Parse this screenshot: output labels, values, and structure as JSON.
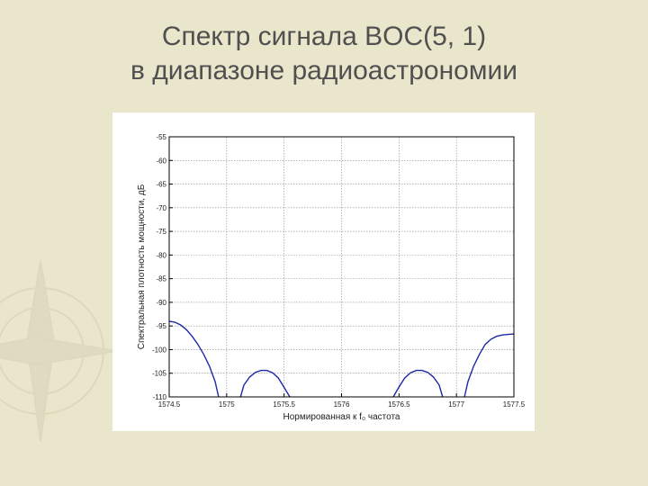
{
  "slide": {
    "title_line1": "Спектр сигнала BOC(5, 1)",
    "title_line2": "в диапазоне радиоастрономии"
  },
  "colors": {
    "background": "#e9e6cc",
    "series": "#1c2aa8",
    "grid": "#8a8a8a"
  },
  "chart_data": {
    "type": "line",
    "title": "",
    "xlabel": "Нормированная к f₀ частота",
    "ylabel": "Спектральная плотность мощности, дБ",
    "xlim": [
      1574.5,
      1577.5
    ],
    "ylim": [
      -110,
      -55
    ],
    "x_ticks": [
      "1574.5",
      "1575",
      "1575.5",
      "1576",
      "1576.5",
      "1577",
      "1577.5"
    ],
    "y_ticks": [
      "-55",
      "-60",
      "-65",
      "-70",
      "-75",
      "-80",
      "-85",
      "-90",
      "-95",
      "-100",
      "-105",
      "-110"
    ],
    "grid": true,
    "series": [
      {
        "values": [
          [
            1574.5,
            -94.0
          ],
          [
            1574.55,
            -94.2
          ],
          [
            1574.6,
            -94.8
          ],
          [
            1574.65,
            -95.8
          ],
          [
            1574.7,
            -97.2
          ],
          [
            1574.75,
            -98.9
          ],
          [
            1574.8,
            -101.0
          ],
          [
            1574.85,
            -103.5
          ],
          [
            1574.9,
            -106.8
          ],
          [
            1574.93,
            -110.0
          ],
          [
            1575.12,
            -110.0
          ],
          [
            1575.15,
            -107.5
          ],
          [
            1575.2,
            -105.8
          ],
          [
            1575.25,
            -104.8
          ],
          [
            1575.3,
            -104.4
          ],
          [
            1575.35,
            -104.4
          ],
          [
            1575.4,
            -104.9
          ],
          [
            1575.45,
            -106.0
          ],
          [
            1575.5,
            -108.0
          ],
          [
            1575.55,
            -110.0
          ],
          [
            1576.45,
            -110.0
          ],
          [
            1576.5,
            -107.9
          ],
          [
            1576.55,
            -106.0
          ],
          [
            1576.6,
            -104.9
          ],
          [
            1576.65,
            -104.4
          ],
          [
            1576.7,
            -104.4
          ],
          [
            1576.75,
            -104.8
          ],
          [
            1576.8,
            -105.8
          ],
          [
            1576.85,
            -107.5
          ],
          [
            1576.88,
            -110.0
          ],
          [
            1577.07,
            -110.0
          ],
          [
            1577.1,
            -106.8
          ],
          [
            1577.15,
            -103.5
          ],
          [
            1577.2,
            -101.0
          ],
          [
            1577.25,
            -98.9
          ],
          [
            1577.3,
            -97.8
          ],
          [
            1577.35,
            -97.2
          ],
          [
            1577.4,
            -96.9
          ],
          [
            1577.45,
            -96.8
          ],
          [
            1577.5,
            -96.7
          ]
        ]
      }
    ]
  }
}
